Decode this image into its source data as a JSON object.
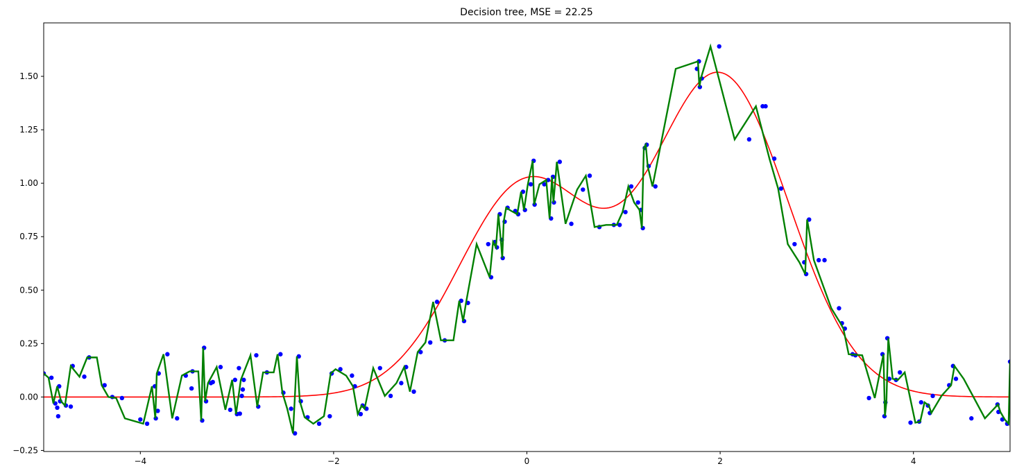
{
  "chart_data": {
    "type": "line",
    "title": "Decision tree, MSE = 22.25",
    "xlabel": "",
    "ylabel": "",
    "xlim": [
      -5,
      5
    ],
    "ylim": [
      -0.255,
      1.75
    ],
    "x_ticks": [
      -4,
      -2,
      0,
      2,
      4
    ],
    "x_tick_labels": [
      "−4",
      "−2",
      "0",
      "2",
      "4"
    ],
    "y_ticks": [
      -0.25,
      0.0,
      0.25,
      0.5,
      0.75,
      1.0,
      1.25,
      1.5
    ],
    "y_tick_labels": [
      "−0.25",
      "0.00",
      "0.25",
      "0.50",
      "0.75",
      "1.00",
      "1.25",
      "1.50"
    ],
    "grid": false,
    "legend": "none",
    "colors": {
      "scatter": "#0000ff",
      "true_function": "#ff0000",
      "prediction": "#008000"
    },
    "true_function": {
      "description_formula": "exp(-x^2) + 1.5*exp(-(x-2)^2)",
      "samples": 400
    },
    "scatter_points": [
      [
        -5.0,
        0.11
      ],
      [
        -4.92,
        0.09
      ],
      [
        -4.88,
        -0.03
      ],
      [
        -4.86,
        -0.05
      ],
      [
        -4.85,
        -0.09
      ],
      [
        -4.84,
        0.05
      ],
      [
        -4.83,
        -0.02
      ],
      [
        -4.77,
        -0.04
      ],
      [
        -4.72,
        -0.045
      ],
      [
        -4.7,
        0.145
      ],
      [
        -4.58,
        0.095
      ],
      [
        -4.53,
        0.185
      ],
      [
        -4.37,
        0.055
      ],
      [
        -4.29,
        0.0
      ],
      [
        -4.19,
        -0.005
      ],
      [
        -4.0,
        -0.105
      ],
      [
        -3.93,
        -0.125
      ],
      [
        -3.85,
        0.05
      ],
      [
        -3.84,
        -0.1
      ],
      [
        -3.82,
        -0.065
      ],
      [
        -3.81,
        0.11
      ],
      [
        -3.72,
        0.2
      ],
      [
        -3.62,
        -0.1
      ],
      [
        -3.53,
        0.1
      ],
      [
        -3.47,
        0.04
      ],
      [
        -3.46,
        0.12
      ],
      [
        -3.36,
        -0.11
      ],
      [
        -3.34,
        0.23
      ],
      [
        -3.32,
        -0.02
      ],
      [
        -3.27,
        0.065
      ],
      [
        -3.25,
        0.07
      ],
      [
        -3.17,
        0.14
      ],
      [
        -3.07,
        -0.06
      ],
      [
        -3.02,
        0.08
      ],
      [
        -3.0,
        -0.08
      ],
      [
        -2.98,
        0.135
      ],
      [
        -2.97,
        -0.078
      ],
      [
        -2.95,
        0.005
      ],
      [
        -2.94,
        0.035
      ],
      [
        -2.93,
        0.08
      ],
      [
        -2.8,
        0.195
      ],
      [
        -2.78,
        -0.045
      ],
      [
        -2.69,
        0.115
      ],
      [
        -2.55,
        0.2
      ],
      [
        -2.52,
        0.02
      ],
      [
        -2.44,
        -0.055
      ],
      [
        -2.4,
        -0.17
      ],
      [
        -2.36,
        0.19
      ],
      [
        -2.34,
        -0.02
      ],
      [
        -2.27,
        -0.095
      ],
      [
        -2.15,
        -0.125
      ],
      [
        -2.04,
        -0.09
      ],
      [
        -2.02,
        0.11
      ],
      [
        -1.93,
        0.13
      ],
      [
        -1.81,
        0.1
      ],
      [
        -1.78,
        0.05
      ],
      [
        -1.72,
        -0.08
      ],
      [
        -1.7,
        -0.04
      ],
      [
        -1.66,
        -0.055
      ],
      [
        -1.52,
        0.135
      ],
      [
        -1.41,
        0.005
      ],
      [
        -1.3,
        0.065
      ],
      [
        -1.25,
        0.14
      ],
      [
        -1.17,
        0.025
      ],
      [
        -1.1,
        0.21
      ],
      [
        -1.0,
        0.255
      ],
      [
        -0.93,
        0.445
      ],
      [
        -0.85,
        0.265
      ],
      [
        -0.68,
        0.45
      ],
      [
        -0.65,
        0.355
      ],
      [
        -0.61,
        0.44
      ],
      [
        -0.4,
        0.715
      ],
      [
        -0.37,
        0.56
      ],
      [
        -0.33,
        0.725
      ],
      [
        -0.31,
        0.7
      ],
      [
        -0.28,
        0.855
      ],
      [
        -0.26,
        0.735
      ],
      [
        -0.25,
        0.65
      ],
      [
        -0.23,
        0.82
      ],
      [
        -0.2,
        0.885
      ],
      [
        -0.12,
        0.87
      ],
      [
        -0.09,
        0.855
      ],
      [
        -0.04,
        0.96
      ],
      [
        -0.02,
        0.875
      ],
      [
        0.04,
        0.995
      ],
      [
        0.07,
        1.105
      ],
      [
        0.08,
        0.9
      ],
      [
        0.18,
        0.995
      ],
      [
        0.22,
        1.015
      ],
      [
        0.25,
        0.835
      ],
      [
        0.27,
        1.03
      ],
      [
        0.28,
        0.91
      ],
      [
        0.34,
        1.1
      ],
      [
        0.46,
        0.81
      ],
      [
        0.58,
        0.97
      ],
      [
        0.65,
        1.035
      ],
      [
        0.75,
        0.795
      ],
      [
        0.9,
        0.805
      ],
      [
        0.96,
        0.805
      ],
      [
        1.02,
        0.865
      ],
      [
        1.08,
        0.985
      ],
      [
        1.15,
        0.91
      ],
      [
        1.18,
        0.875
      ],
      [
        1.2,
        0.79
      ],
      [
        1.22,
        1.165
      ],
      [
        1.24,
        1.18
      ],
      [
        1.26,
        1.08
      ],
      [
        1.33,
        0.985
      ],
      [
        1.76,
        1.535
      ],
      [
        1.78,
        1.57
      ],
      [
        1.79,
        1.45
      ],
      [
        1.81,
        1.49
      ],
      [
        1.99,
        1.64
      ],
      [
        2.3,
        1.205
      ],
      [
        2.44,
        1.36
      ],
      [
        2.47,
        1.36
      ],
      [
        2.56,
        1.115
      ],
      [
        2.63,
        0.975
      ],
      [
        2.77,
        0.715
      ],
      [
        2.87,
        0.63
      ],
      [
        2.89,
        0.575
      ],
      [
        2.92,
        0.83
      ],
      [
        3.02,
        0.64
      ],
      [
        3.08,
        0.64
      ],
      [
        3.23,
        0.415
      ],
      [
        3.26,
        0.345
      ],
      [
        3.29,
        0.32
      ],
      [
        3.37,
        0.2
      ],
      [
        3.4,
        0.195
      ],
      [
        3.54,
        -0.005
      ],
      [
        3.68,
        0.2
      ],
      [
        3.7,
        -0.09
      ],
      [
        3.71,
        -0.025
      ],
      [
        3.73,
        0.275
      ],
      [
        3.75,
        0.085
      ],
      [
        3.82,
        0.08
      ],
      [
        3.86,
        0.115
      ],
      [
        3.97,
        -0.12
      ],
      [
        4.06,
        -0.115
      ],
      [
        4.08,
        -0.025
      ],
      [
        4.15,
        -0.04
      ],
      [
        4.17,
        -0.075
      ],
      [
        4.2,
        0.005
      ],
      [
        4.37,
        0.055
      ],
      [
        4.41,
        0.145
      ],
      [
        4.44,
        0.085
      ],
      [
        4.6,
        -0.1
      ],
      [
        4.87,
        -0.035
      ],
      [
        4.88,
        -0.07
      ],
      [
        4.92,
        -0.105
      ],
      [
        4.97,
        -0.125
      ],
      [
        5.0,
        0.165
      ]
    ],
    "prediction_steps": [
      [
        -5.0,
        0.11
      ],
      [
        -4.95,
        0.09
      ],
      [
        -4.9,
        -0.03
      ],
      [
        -4.86,
        0.05
      ],
      [
        -4.82,
        -0.02
      ],
      [
        -4.78,
        -0.04
      ],
      [
        -4.72,
        0.145
      ],
      [
        -4.63,
        0.095
      ],
      [
        -4.55,
        0.185
      ],
      [
        -4.45,
        0.185
      ],
      [
        -4.4,
        0.055
      ],
      [
        -4.33,
        0.0
      ],
      [
        -4.25,
        -0.005
      ],
      [
        -4.16,
        -0.1
      ],
      [
        -3.97,
        -0.125
      ],
      [
        -3.88,
        0.05
      ],
      [
        -3.845,
        -0.1
      ],
      [
        -3.83,
        0.11
      ],
      [
        -3.76,
        0.2
      ],
      [
        -3.67,
        -0.1
      ],
      [
        -3.57,
        0.1
      ],
      [
        -3.49,
        0.12
      ],
      [
        -3.4,
        0.12
      ],
      [
        -3.37,
        -0.11
      ],
      [
        -3.35,
        0.23
      ],
      [
        -3.33,
        -0.02
      ],
      [
        -3.3,
        0.065
      ],
      [
        -3.21,
        0.14
      ],
      [
        -3.12,
        -0.06
      ],
      [
        -3.05,
        0.08
      ],
      [
        -3.01,
        -0.08
      ],
      [
        -2.96,
        0.08
      ],
      [
        -2.86,
        0.195
      ],
      [
        -2.79,
        -0.045
      ],
      [
        -2.73,
        0.115
      ],
      [
        -2.62,
        0.115
      ],
      [
        -2.58,
        0.2
      ],
      [
        -2.53,
        0.02
      ],
      [
        -2.48,
        -0.055
      ],
      [
        -2.42,
        -0.17
      ],
      [
        -2.38,
        0.19
      ],
      [
        -2.35,
        -0.02
      ],
      [
        -2.3,
        -0.095
      ],
      [
        -2.21,
        -0.125
      ],
      [
        -2.1,
        -0.09
      ],
      [
        -2.03,
        0.11
      ],
      [
        -1.98,
        0.13
      ],
      [
        -1.87,
        0.1
      ],
      [
        -1.8,
        0.05
      ],
      [
        -1.75,
        -0.08
      ],
      [
        -1.71,
        -0.04
      ],
      [
        -1.68,
        -0.055
      ],
      [
        -1.59,
        0.135
      ],
      [
        -1.47,
        0.005
      ],
      [
        -1.35,
        0.065
      ],
      [
        -1.27,
        0.14
      ],
      [
        -1.21,
        0.025
      ],
      [
        -1.13,
        0.21
      ],
      [
        -1.05,
        0.255
      ],
      [
        -0.97,
        0.445
      ],
      [
        -0.89,
        0.265
      ],
      [
        -0.76,
        0.265
      ],
      [
        -0.7,
        0.45
      ],
      [
        -0.66,
        0.355
      ],
      [
        -0.63,
        0.44
      ],
      [
        -0.52,
        0.715
      ],
      [
        -0.385,
        0.56
      ],
      [
        -0.35,
        0.725
      ],
      [
        -0.32,
        0.7
      ],
      [
        -0.295,
        0.855
      ],
      [
        -0.27,
        0.735
      ],
      [
        -0.255,
        0.65
      ],
      [
        -0.24,
        0.82
      ],
      [
        -0.215,
        0.885
      ],
      [
        -0.16,
        0.87
      ],
      [
        -0.1,
        0.855
      ],
      [
        -0.06,
        0.96
      ],
      [
        -0.03,
        0.875
      ],
      [
        0.01,
        0.995
      ],
      [
        0.06,
        1.105
      ],
      [
        0.075,
        0.9
      ],
      [
        0.13,
        0.995
      ],
      [
        0.2,
        1.015
      ],
      [
        0.235,
        0.835
      ],
      [
        0.26,
        1.03
      ],
      [
        0.275,
        0.91
      ],
      [
        0.31,
        1.1
      ],
      [
        0.4,
        0.81
      ],
      [
        0.52,
        0.97
      ],
      [
        0.61,
        1.035
      ],
      [
        0.7,
        0.795
      ],
      [
        0.82,
        0.805
      ],
      [
        0.93,
        0.805
      ],
      [
        0.99,
        0.865
      ],
      [
        1.05,
        0.985
      ],
      [
        1.11,
        0.91
      ],
      [
        1.165,
        0.875
      ],
      [
        1.19,
        0.79
      ],
      [
        1.21,
        1.165
      ],
      [
        1.23,
        1.18
      ],
      [
        1.25,
        1.08
      ],
      [
        1.3,
        0.985
      ],
      [
        1.54,
        1.535
      ],
      [
        1.77,
        1.57
      ],
      [
        1.785,
        1.45
      ],
      [
        1.8,
        1.49
      ],
      [
        1.9,
        1.64
      ],
      [
        2.15,
        1.205
      ],
      [
        2.37,
        1.36
      ],
      [
        2.51,
        1.115
      ],
      [
        2.6,
        0.975
      ],
      [
        2.7,
        0.715
      ],
      [
        2.82,
        0.63
      ],
      [
        2.88,
        0.575
      ],
      [
        2.9,
        0.83
      ],
      [
        2.97,
        0.64
      ],
      [
        3.15,
        0.415
      ],
      [
        3.245,
        0.345
      ],
      [
        3.275,
        0.32
      ],
      [
        3.33,
        0.2
      ],
      [
        3.47,
        0.195
      ],
      [
        3.6,
        -0.005
      ],
      [
        3.69,
        0.2
      ],
      [
        3.705,
        -0.09
      ],
      [
        3.72,
        -0.025
      ],
      [
        3.74,
        0.275
      ],
      [
        3.785,
        0.085
      ],
      [
        3.84,
        0.08
      ],
      [
        3.91,
        0.115
      ],
      [
        4.02,
        -0.12
      ],
      [
        4.07,
        -0.115
      ],
      [
        4.115,
        -0.025
      ],
      [
        4.16,
        -0.04
      ],
      [
        4.185,
        -0.075
      ],
      [
        4.29,
        0.005
      ],
      [
        4.39,
        0.055
      ],
      [
        4.425,
        0.145
      ],
      [
        4.52,
        0.085
      ],
      [
        4.74,
        -0.1
      ],
      [
        4.875,
        -0.035
      ],
      [
        4.9,
        -0.07
      ],
      [
        4.945,
        -0.105
      ],
      [
        4.985,
        -0.125
      ],
      [
        5.0,
        0.165
      ]
    ]
  }
}
